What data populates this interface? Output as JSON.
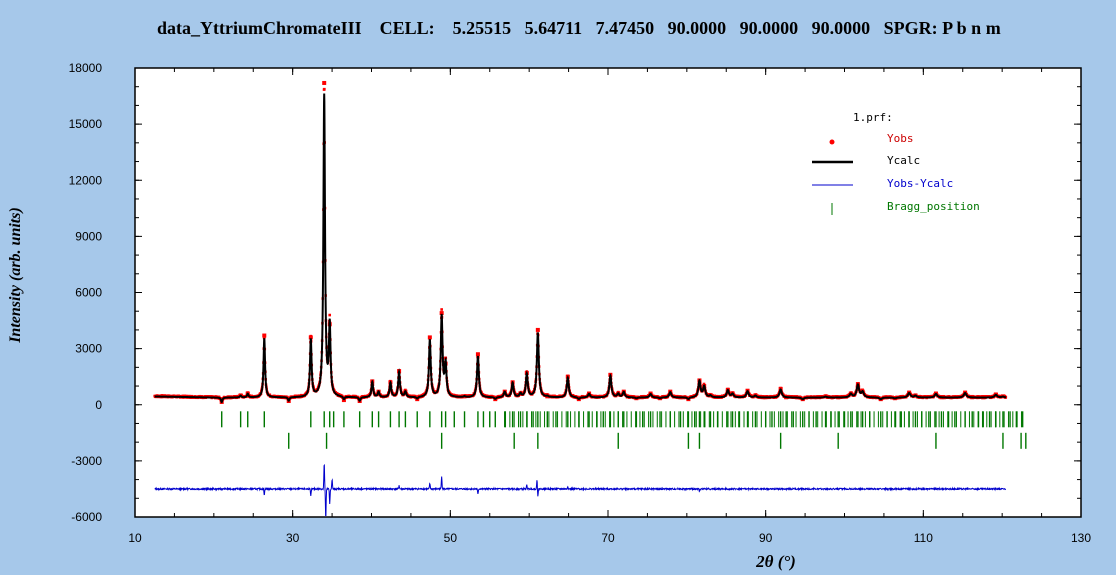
{
  "header": {
    "title": "data_YttriumChromateIII    CELL:    5.25515   5.64711   7.47450   90.0000   90.0000   90.0000   SPGR: P b n m"
  },
  "colors": {
    "background": "#a6c8ea",
    "plot_bg": "#ffffff",
    "yobs": "#ff0000",
    "ycalc": "#000000",
    "diff": "#0000cc",
    "bragg": "#007700"
  },
  "chart_data": {
    "type": "line",
    "xlabel": "2θ (°)",
    "ylabel": "Intensity (arb. units)",
    "xlim": [
      10,
      130
    ],
    "ylim": [
      -6000,
      18000
    ],
    "x_ticks": [
      10,
      30,
      50,
      70,
      90,
      110,
      130
    ],
    "y_ticks": [
      -6000,
      -3000,
      0,
      3000,
      6000,
      9000,
      12000,
      15000,
      18000
    ],
    "x_range_data": [
      12.5,
      120.5
    ],
    "background_level": 400,
    "legend": {
      "title": "1.prf:",
      "entries": [
        "Yobs",
        "Ycalc",
        "Yobs-Ycalc",
        "Bragg_position"
      ],
      "placement": "top-right"
    },
    "peaks": [
      {
        "x": 21.0,
        "y": 150
      },
      {
        "x": 23.4,
        "y": 500
      },
      {
        "x": 24.3,
        "y": 600
      },
      {
        "x": 26.4,
        "y": 3700
      },
      {
        "x": 29.5,
        "y": 200
      },
      {
        "x": 32.3,
        "y": 3600
      },
      {
        "x": 34.0,
        "y": 17200
      },
      {
        "x": 34.7,
        "y": 4300
      },
      {
        "x": 36.5,
        "y": 250
      },
      {
        "x": 38.5,
        "y": 200
      },
      {
        "x": 40.1,
        "y": 1250
      },
      {
        "x": 40.9,
        "y": 700
      },
      {
        "x": 42.4,
        "y": 1200
      },
      {
        "x": 43.5,
        "y": 1800
      },
      {
        "x": 44.3,
        "y": 700
      },
      {
        "x": 45.8,
        "y": 300
      },
      {
        "x": 47.4,
        "y": 3600
      },
      {
        "x": 48.9,
        "y": 4900
      },
      {
        "x": 49.4,
        "y": 2200
      },
      {
        "x": 51.8,
        "y": 450
      },
      {
        "x": 53.5,
        "y": 2700
      },
      {
        "x": 55.7,
        "y": 300
      },
      {
        "x": 56.9,
        "y": 700
      },
      {
        "x": 57.9,
        "y": 1200
      },
      {
        "x": 58.9,
        "y": 600
      },
      {
        "x": 59.7,
        "y": 1700
      },
      {
        "x": 61.1,
        "y": 4000
      },
      {
        "x": 62.3,
        "y": 450
      },
      {
        "x": 64.9,
        "y": 1500
      },
      {
        "x": 66.3,
        "y": 300
      },
      {
        "x": 67.6,
        "y": 600
      },
      {
        "x": 70.3,
        "y": 1600
      },
      {
        "x": 71.3,
        "y": 600
      },
      {
        "x": 72.0,
        "y": 700
      },
      {
        "x": 73.6,
        "y": 350
      },
      {
        "x": 75.4,
        "y": 600
      },
      {
        "x": 76.6,
        "y": 350
      },
      {
        "x": 77.9,
        "y": 700
      },
      {
        "x": 79.2,
        "y": 400
      },
      {
        "x": 80.2,
        "y": 300
      },
      {
        "x": 81.6,
        "y": 1300
      },
      {
        "x": 82.2,
        "y": 1000
      },
      {
        "x": 83.0,
        "y": 500
      },
      {
        "x": 85.2,
        "y": 800
      },
      {
        "x": 85.8,
        "y": 600
      },
      {
        "x": 87.7,
        "y": 750
      },
      {
        "x": 88.7,
        "y": 500
      },
      {
        "x": 90.0,
        "y": 400
      },
      {
        "x": 91.9,
        "y": 850
      },
      {
        "x": 92.6,
        "y": 400
      },
      {
        "x": 94.7,
        "y": 300
      },
      {
        "x": 97.6,
        "y": 450
      },
      {
        "x": 99.2,
        "y": 400
      },
      {
        "x": 100.8,
        "y": 600
      },
      {
        "x": 101.7,
        "y": 1100
      },
      {
        "x": 102.3,
        "y": 700
      },
      {
        "x": 104.6,
        "y": 300
      },
      {
        "x": 106.4,
        "y": 350
      },
      {
        "x": 108.2,
        "y": 650
      },
      {
        "x": 109.0,
        "y": 500
      },
      {
        "x": 111.6,
        "y": 600
      },
      {
        "x": 112.3,
        "y": 400
      },
      {
        "x": 115.3,
        "y": 650
      },
      {
        "x": 116.2,
        "y": 400
      },
      {
        "x": 117.6,
        "y": 400
      },
      {
        "x": 119.2,
        "y": 550
      },
      {
        "x": 120.1,
        "y": 450
      }
    ],
    "bragg_positions": {
      "row1_y": 0,
      "row2_y": 1,
      "row1": [
        21.0,
        23.4,
        24.3,
        26.4,
        32.3,
        34.0,
        34.7,
        35.2,
        36.5,
        38.5,
        40.1,
        40.9,
        42.4,
        43.5,
        44.3,
        45.8,
        47.4,
        48.9,
        49.4,
        50.5,
        51.8,
        53.5,
        54.2,
        55.0,
        55.7,
        56.9,
        57.9,
        58.9,
        59.7,
        60.5,
        61.1,
        62.3,
        63.4,
        64.9,
        66.3,
        67.6,
        68.6,
        69.4,
        70.3,
        71.3,
        72.0,
        73.6,
        74.4,
        75.4,
        76.6,
        77.9,
        79.2,
        80.2,
        81.0,
        81.6,
        82.2,
        83.0,
        83.9,
        85.2,
        85.8,
        86.6,
        87.7,
        88.7,
        90.0,
        90.8,
        91.9,
        92.6,
        93.5,
        94.7,
        95.5,
        96.4,
        97.6,
        98.3,
        99.2,
        100.0,
        100.8,
        101.7,
        102.3,
        103.2,
        104.6,
        105.4,
        106.4,
        107.2,
        108.2,
        109.0,
        109.8,
        110.7,
        111.6,
        112.3,
        113.2,
        114.0,
        115.3,
        116.2,
        117.0,
        117.6,
        118.4,
        119.2,
        120.1,
        121.0,
        121.8,
        122.6
      ],
      "row2": [
        29.5,
        34.3,
        48.9,
        58.1,
        61.1,
        71.3,
        80.2,
        81.6,
        91.9,
        99.2,
        111.6,
        120.1,
        122.4,
        123.0
      ]
    },
    "diff_offset": -4500,
    "diff_spikes": [
      {
        "x": 26.4,
        "y": -300
      },
      {
        "x": 32.3,
        "y": -400
      },
      {
        "x": 34.0,
        "y": 1400
      },
      {
        "x": 34.2,
        "y": -1600
      },
      {
        "x": 34.7,
        "y": -800
      },
      {
        "x": 35.0,
        "y": 500
      },
      {
        "x": 43.5,
        "y": 200
      },
      {
        "x": 47.4,
        "y": 300
      },
      {
        "x": 48.9,
        "y": 700
      },
      {
        "x": 53.5,
        "y": -300
      },
      {
        "x": 59.7,
        "y": 200
      },
      {
        "x": 61.1,
        "y": -400
      },
      {
        "x": 61.0,
        "y": 500
      },
      {
        "x": 64.9,
        "y": 150
      },
      {
        "x": 81.6,
        "y": -150
      }
    ]
  }
}
